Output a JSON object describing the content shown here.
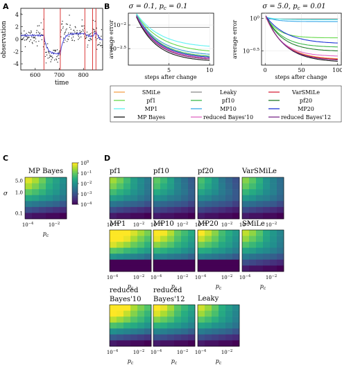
{
  "panel_labels": {
    "a": "A",
    "b": "B",
    "c": "C",
    "d": "D"
  },
  "chart_data": [
    {
      "id": "A",
      "type": "scatter",
      "xlabel": "time",
      "ylabel": "observation",
      "xlim": [
        540,
        880
      ],
      "ylim": [
        -5,
        5
      ],
      "xticks": [
        600,
        700,
        800
      ],
      "yticks": [
        4,
        2,
        0,
        -2,
        -4
      ],
      "change_points": [
        636,
        704,
        806,
        838,
        852
      ],
      "segment_means": [
        {
          "x0": 540,
          "x1": 636,
          "y": 0.6
        },
        {
          "x0": 636,
          "x1": 704,
          "y": -2.4
        },
        {
          "x0": 704,
          "x1": 806,
          "y": 0.9
        },
        {
          "x0": 806,
          "x1": 838,
          "y": 0.4
        },
        {
          "x0": 838,
          "x1": 852,
          "y": 1.3
        },
        {
          "x0": 852,
          "x1": 880,
          "y": -0.3
        }
      ],
      "noise_sd": 0.9,
      "estimate_color": "#3b3bd8",
      "change_color": "#d62020",
      "point_color": "#222222"
    },
    {
      "id": "B-left",
      "type": "line",
      "title": "σ = 0.1, p_c = 0.1",
      "title_parts": {
        "sigma": "σ = 0.1,",
        "pc": "p",
        "sub": "c",
        "rest": " = 0.1"
      },
      "xlabel": "steps after change",
      "ylabel": "average error",
      "x": [
        1,
        10
      ],
      "xticks": [
        5,
        10
      ],
      "yscale": "log",
      "ylim_log10": [
        -2.85,
        -1.75
      ],
      "yticks": [
        {
          "log": -2,
          "label": "10",
          "exp": "−2"
        },
        {
          "log": -2.5,
          "label": "10",
          "exp": "−2.5"
        }
      ],
      "series": [
        {
          "name": "SMiLe",
          "color": "#f5a04a",
          "start": -1.8,
          "end": -2.62,
          "k": 0.35
        },
        {
          "name": "Leaky",
          "color": "#8c8c8c",
          "start": -2.05,
          "end": -2.05,
          "k": 0.4
        },
        {
          "name": "VarSMiLe",
          "color": "#d7263d",
          "start": -1.82,
          "end": -2.72,
          "k": 0.38
        },
        {
          "name": "pf1",
          "color": "#66d94a",
          "start": -1.78,
          "end": -2.55,
          "k": 0.32
        },
        {
          "name": "pf10",
          "color": "#3cb84a",
          "start": -1.8,
          "end": -2.66,
          "k": 0.36
        },
        {
          "name": "pf20",
          "color": "#1f7a2a",
          "start": -1.82,
          "end": -2.7,
          "k": 0.37
        },
        {
          "name": "MP1",
          "color": "#5ef2f2",
          "start": -1.76,
          "end": -2.45,
          "k": 0.33
        },
        {
          "name": "MP10",
          "color": "#35a7e8",
          "start": -1.79,
          "end": -2.62,
          "k": 0.35
        },
        {
          "name": "MP20",
          "color": "#1a33d6",
          "start": -1.8,
          "end": -2.68,
          "k": 0.37
        },
        {
          "name": "MP Bayes",
          "color": "#111111",
          "start": -1.83,
          "end": -2.75,
          "k": 0.4
        },
        {
          "name": "reduced Bayes'10",
          "color": "#e066c4",
          "start": -1.8,
          "end": -2.7,
          "k": 0.38
        },
        {
          "name": "reduced Bayes'12",
          "color": "#7a2a8a",
          "start": -1.81,
          "end": -2.72,
          "k": 0.39
        }
      ]
    },
    {
      "id": "B-right",
      "type": "line",
      "title": "σ = 5.0, p_c = 0.01",
      "title_parts": {
        "sigma": "σ = 5.0,",
        "pc": "p",
        "sub": "c",
        "rest": " = 0.01"
      },
      "xlabel": "steps after change",
      "ylabel": "average error",
      "x": [
        1,
        100
      ],
      "xticks": [
        0,
        50,
        100
      ],
      "yscale": "log",
      "ylim_log10": [
        -0.72,
        0.08
      ],
      "yticks": [
        {
          "log": 0,
          "label": "10",
          "exp": "0"
        },
        {
          "log": -0.5,
          "label": "10",
          "exp": "−0.5"
        }
      ],
      "series": [
        {
          "name": "SMiLe",
          "color": "#f5a04a",
          "start": 0.02,
          "end": -0.62,
          "k": 0.04
        },
        {
          "name": "Leaky",
          "color": "#8c8c8c",
          "start": -0.01,
          "end": -0.01,
          "k": 0.05
        },
        {
          "name": "VarSMiLe",
          "color": "#d7263d",
          "start": 0.03,
          "end": -0.63,
          "k": 0.04
        },
        {
          "name": "pf1",
          "color": "#66d94a",
          "start": 0.03,
          "end": -0.3,
          "k": 0.06
        },
        {
          "name": "pf10",
          "color": "#3cb84a",
          "start": 0.03,
          "end": -0.44,
          "k": 0.045
        },
        {
          "name": "pf20",
          "color": "#1f7a2a",
          "start": 0.03,
          "end": -0.5,
          "k": 0.042
        },
        {
          "name": "MP1",
          "color": "#5ef2f2",
          "start": 0.02,
          "end": -0.02,
          "k": 0.08
        },
        {
          "name": "MP10",
          "color": "#35a7e8",
          "start": 0.02,
          "end": -0.05,
          "k": 0.07
        },
        {
          "name": "MP20",
          "color": "#1a33d6",
          "start": 0.03,
          "end": -0.38,
          "k": 0.035
        },
        {
          "name": "MP Bayes",
          "color": "#111111",
          "start": 0.04,
          "end": -0.66,
          "k": 0.038
        },
        {
          "name": "reduced Bayes'10",
          "color": "#e066c4",
          "start": 0.03,
          "end": -0.58,
          "k": 0.045
        },
        {
          "name": "reduced Bayes'12",
          "color": "#7a2a8a",
          "start": 0.04,
          "end": -0.64,
          "k": 0.04
        }
      ]
    },
    {
      "id": "C-D",
      "type": "heatmap",
      "xlabel": "p_c",
      "ylabel": "σ",
      "rows": 7,
      "cols": 6,
      "yticks": [
        "5.0",
        "1.0",
        "0.1"
      ],
      "xticks": [
        {
          "label": "10",
          "exp": "−4"
        },
        {
          "label": "10",
          "exp": "−2"
        }
      ],
      "colorbar": {
        "log10_range": [
          -4,
          0
        ],
        "ticks": [
          {
            "label": "10",
            "exp": "0"
          },
          {
            "label": "10",
            "exp": "−1"
          },
          {
            "label": "10",
            "exp": "−2"
          },
          {
            "label": "10",
            "exp": "−3"
          },
          {
            "label": "10",
            "exp": "−4"
          }
        ]
      },
      "base": [
        [
          -0.2,
          -0.5,
          -0.9,
          -1.4,
          -1.7,
          -2.0
        ],
        [
          -0.5,
          -0.8,
          -1.1,
          -1.5,
          -1.8,
          -2.1
        ],
        [
          -1.0,
          -1.2,
          -1.4,
          -1.7,
          -1.9,
          -2.2
        ],
        [
          -1.6,
          -1.7,
          -1.9,
          -2.0,
          -2.2,
          -2.4
        ],
        [
          -2.3,
          -2.4,
          -2.5,
          -2.6,
          -2.7,
          -2.9
        ],
        [
          -3.0,
          -3.1,
          -3.2,
          -3.3,
          -3.4,
          -3.5
        ],
        [
          -3.7,
          -3.8,
          -3.8,
          -3.9,
          -3.9,
          -4.0
        ]
      ],
      "maps": [
        {
          "title": "MP Bayes",
          "offset": 0.0
        },
        {
          "title": "pf1",
          "offset": -0.4
        },
        {
          "title": "pf10",
          "offset": -0.9
        },
        {
          "title": "pf20",
          "offset": -1.1
        },
        {
          "title": "VarSMiLe",
          "offset": -0.6
        },
        {
          "title": "MP1",
          "offset": 1.3
        },
        {
          "title": "MP10",
          "offset": 0.5
        },
        {
          "title": "MP20",
          "offset": 0.2
        },
        {
          "title": "SMiLe",
          "offset": -0.2
        },
        {
          "title_line1": "reduced",
          "title": "Bayes'10",
          "offset": 1.0
        },
        {
          "title_line1": "reduced",
          "title": "Bayes'12",
          "offset": 0.4
        },
        {
          "title": "Leaky",
          "offset": -0.1
        }
      ]
    }
  ]
}
